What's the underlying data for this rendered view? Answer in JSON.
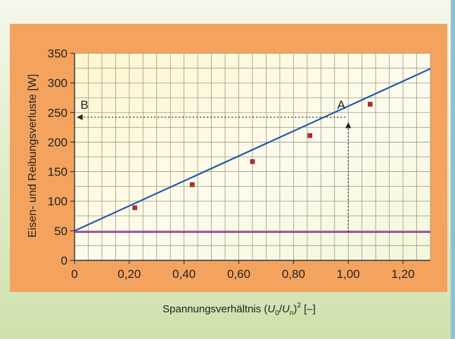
{
  "chart_data": {
    "type": "line",
    "xlabel_main": "Spannungsverhältnis (",
    "xlabel_u0_u": "U",
    "xlabel_u0_sub": "0",
    "xlabel_slash": "/",
    "xlabel_un_u": "U",
    "xlabel_un_sub": "n",
    "xlabel_close": ")",
    "xlabel_sup": "2",
    "xlabel_unit": " [–]",
    "ylabel": "Eisen- und Reibungsverluste [W]",
    "xlim": [
      0,
      1.3
    ],
    "ylim": [
      0,
      350
    ],
    "x_ticks": [
      {
        "v": 0,
        "label": "0"
      },
      {
        "v": 0.2,
        "label": "0,20"
      },
      {
        "v": 0.4,
        "label": "0,40"
      },
      {
        "v": 0.6,
        "label": "0,60"
      },
      {
        "v": 0.8,
        "label": "0,80"
      },
      {
        "v": 1.0,
        "label": "1,00"
      },
      {
        "v": 1.2,
        "label": "1,20"
      }
    ],
    "y_ticks": [
      {
        "v": 0,
        "label": "0"
      },
      {
        "v": 50,
        "label": "50"
      },
      {
        "v": 100,
        "label": "100"
      },
      {
        "v": 150,
        "label": "150"
      },
      {
        "v": 200,
        "label": "200"
      },
      {
        "v": 250,
        "label": "250"
      },
      {
        "v": 300,
        "label": "300"
      },
      {
        "v": 350,
        "label": "350"
      }
    ],
    "grid": true,
    "measured_points": [
      {
        "x": 0.22,
        "y": 89
      },
      {
        "x": 0.43,
        "y": 128
      },
      {
        "x": 0.65,
        "y": 167
      },
      {
        "x": 0.86,
        "y": 211
      },
      {
        "x": 1.08,
        "y": 264
      }
    ],
    "fit_line": {
      "x": [
        0,
        1.3
      ],
      "y": [
        50,
        324
      ]
    },
    "friction_line": {
      "x": [
        0,
        1.3
      ],
      "y": [
        48,
        48
      ]
    },
    "annotations": [
      {
        "label": "A",
        "x": 1.0,
        "y": 242
      },
      {
        "label": "B",
        "x": 0,
        "y": 242
      }
    ],
    "colors": {
      "fit_line": "#2458a6",
      "friction_line": "#8a2c8c",
      "points": "#c0282c",
      "grid": "#9a9a78",
      "axis": "#333333"
    }
  }
}
